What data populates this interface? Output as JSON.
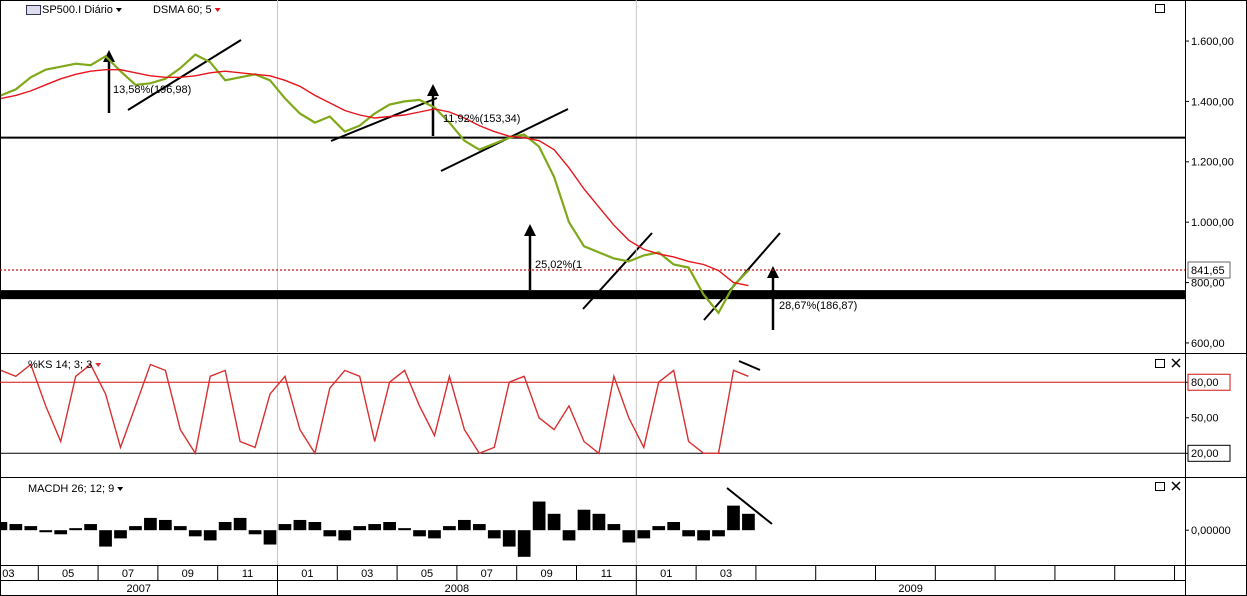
{
  "chart_data": [
    {
      "type": "line",
      "xlim": [
        3.72,
        43.35
      ],
      "ylim": [
        570,
        1736
      ],
      "yticks": [
        {
          "value": 1600,
          "label": "1.600,00"
        },
        {
          "value": 1400,
          "label": "1.400,00"
        },
        {
          "value": 1200,
          "label": "1.200,00"
        },
        {
          "value": 1000,
          "label": "1.000,00"
        },
        {
          "value": 800,
          "label": "800,00"
        },
        {
          "value": 600,
          "label": "600,00"
        }
      ],
      "x": [
        3.75,
        4.25,
        4.75,
        5.25,
        5.75,
        6.25,
        6.75,
        7.25,
        7.75,
        8.25,
        8.75,
        9.25,
        9.75,
        10.25,
        10.75,
        11.25,
        11.75,
        12.25,
        12.75,
        13.25,
        13.75,
        14.25,
        14.75,
        15.25,
        15.75,
        16.25,
        16.75,
        17.25,
        17.75,
        18.25,
        18.75,
        19.25,
        19.75,
        20.25,
        20.75,
        21.25,
        21.75,
        22.25,
        22.75,
        23.25,
        23.75,
        24.25,
        24.75,
        25.25,
        25.75,
        26.25,
        26.75,
        27.25,
        27.75,
        28.25,
        28.75
      ],
      "series": [
        {
          "name": "SP500.I Diário",
          "color": "#7fa81a",
          "legend_color": "#000000",
          "values": [
            1420,
            1440,
            1480,
            1505,
            1515,
            1525,
            1520,
            1550,
            1500,
            1455,
            1460,
            1475,
            1510,
            1555,
            1530,
            1470,
            1480,
            1490,
            1470,
            1410,
            1360,
            1330,
            1350,
            1300,
            1320,
            1360,
            1390,
            1400,
            1405,
            1380,
            1330,
            1270,
            1240,
            1260,
            1280,
            1290,
            1250,
            1150,
            1000,
            920,
            900,
            880,
            870,
            890,
            900,
            860,
            850,
            760,
            700,
            790,
            840
          ]
        },
        {
          "name": "DSMA 60; 5",
          "color": "#e8141c",
          "legend_color": "#e8141c",
          "values": [
            1410,
            1420,
            1435,
            1455,
            1475,
            1490,
            1500,
            1505,
            1505,
            1495,
            1485,
            1480,
            1480,
            1485,
            1495,
            1500,
            1495,
            1490,
            1485,
            1470,
            1450,
            1420,
            1395,
            1370,
            1355,
            1345,
            1350,
            1355,
            1365,
            1375,
            1365,
            1345,
            1320,
            1300,
            1285,
            1280,
            1270,
            1240,
            1180,
            1110,
            1050,
            990,
            940,
            910,
            895,
            885,
            870,
            860,
            840,
            800,
            790
          ]
        }
      ],
      "reference_lines": [
        {
          "value": 1280,
          "style": "thin",
          "color": "#000000"
        },
        {
          "value": 760,
          "style": "thick",
          "color": "#000000"
        },
        {
          "value": 841.65,
          "label": "841,65",
          "style": "dotted",
          "color": "#d01010"
        }
      ],
      "annotations": [
        "13,58%(196,98)",
        "11,92%(153,34)",
        "25,02%(1",
        "28,67%(186,87)"
      ],
      "grid": true
    },
    {
      "type": "line",
      "xlim": [
        3.72,
        43.35
      ],
      "ylim": [
        0,
        103
      ],
      "yticks": [
        {
          "value": 80,
          "label": "80,00"
        },
        {
          "value": 50,
          "label": "50,00"
        },
        {
          "value": 20,
          "label": "20,00"
        }
      ],
      "x": [
        3.75,
        4.25,
        4.75,
        5.25,
        5.75,
        6.25,
        6.75,
        7.25,
        7.75,
        8.25,
        8.75,
        9.25,
        9.75,
        10.25,
        10.75,
        11.25,
        11.75,
        12.25,
        12.75,
        13.25,
        13.75,
        14.25,
        14.75,
        15.25,
        15.75,
        16.25,
        16.75,
        17.25,
        17.75,
        18.25,
        18.75,
        19.25,
        19.75,
        20.25,
        20.75,
        21.25,
        21.75,
        22.25,
        22.75,
        23.25,
        23.75,
        24.25,
        24.75,
        25.25,
        25.75,
        26.25,
        26.75,
        27.25,
        27.75,
        28.25,
        28.75
      ],
      "series": [
        {
          "name": "%KS 14; 3; 3",
          "color": "#d83030",
          "legend_color": "#d83030",
          "values": [
            90,
            85,
            95,
            60,
            30,
            85,
            95,
            70,
            25,
            60,
            95,
            90,
            40,
            20,
            85,
            90,
            30,
            25,
            70,
            85,
            40,
            20,
            75,
            90,
            85,
            30,
            80,
            90,
            60,
            35,
            85,
            40,
            20,
            25,
            80,
            85,
            50,
            40,
            60,
            30,
            20,
            85,
            50,
            25,
            80,
            90,
            30,
            20,
            20,
            90,
            85
          ]
        }
      ],
      "reference_lines": [
        {
          "value": 80,
          "style": "thin",
          "color": "#d01010"
        },
        {
          "value": 20,
          "style": "thin",
          "color": "#000000"
        }
      ],
      "grid": true
    },
    {
      "type": "bar",
      "xlim": [
        3.72,
        43.35
      ],
      "ylim": [
        -17,
        25
      ],
      "yticks": [
        {
          "value": 0,
          "label": "0,00000"
        }
      ],
      "x": [
        3.75,
        4.25,
        4.75,
        5.25,
        5.75,
        6.25,
        6.75,
        7.25,
        7.75,
        8.25,
        8.75,
        9.25,
        9.75,
        10.25,
        10.75,
        11.25,
        11.75,
        12.25,
        12.75,
        13.25,
        13.75,
        14.25,
        14.75,
        15.25,
        15.75,
        16.25,
        16.75,
        17.25,
        17.75,
        18.25,
        18.75,
        19.25,
        19.75,
        20.25,
        20.75,
        21.25,
        21.75,
        22.25,
        22.75,
        23.25,
        23.75,
        24.25,
        24.75,
        25.25,
        25.75,
        26.25,
        26.75,
        27.25,
        27.75,
        28.25,
        28.75
      ],
      "series": [
        {
          "name": "MACDH 26; 12; 9",
          "color": "#000000",
          "legend_color": "#000000",
          "values": [
            4,
            3,
            2,
            -1,
            -2,
            1,
            3,
            -8,
            -4,
            2,
            6,
            5,
            2,
            -3,
            -5,
            4,
            6,
            -2,
            -7,
            3,
            5,
            4,
            -3,
            -5,
            2,
            3,
            4,
            1,
            -3,
            -4,
            2,
            5,
            3,
            -4,
            -8,
            -13,
            14,
            8,
            -5,
            10,
            8,
            3,
            -6,
            -4,
            2,
            4,
            -3,
            -5,
            -3,
            12,
            8
          ]
        }
      ],
      "xticks": [
        {
          "value": 3,
          "label": "03"
        },
        {
          "value": 5,
          "label": "05"
        },
        {
          "value": 7,
          "label": "07"
        },
        {
          "value": 9,
          "label": "09"
        },
        {
          "value": 11,
          "label": "11"
        },
        {
          "value": 13,
          "label": "01"
        },
        {
          "value": 15,
          "label": "03"
        },
        {
          "value": 17,
          "label": "05"
        },
        {
          "value": 19,
          "label": "07"
        },
        {
          "value": 21,
          "label": "09"
        },
        {
          "value": 23,
          "label": "11"
        },
        {
          "value": 25,
          "label": "01"
        },
        {
          "value": 27,
          "label": "03"
        }
      ],
      "minor_xticks": [
        29,
        31,
        33,
        35,
        37,
        39,
        41,
        43
      ],
      "year_ticks": [
        {
          "value": 1,
          "label": "2007"
        },
        {
          "value": 13,
          "label": "2008"
        },
        {
          "value": 25,
          "label": "2009"
        }
      ],
      "grid": true
    }
  ]
}
